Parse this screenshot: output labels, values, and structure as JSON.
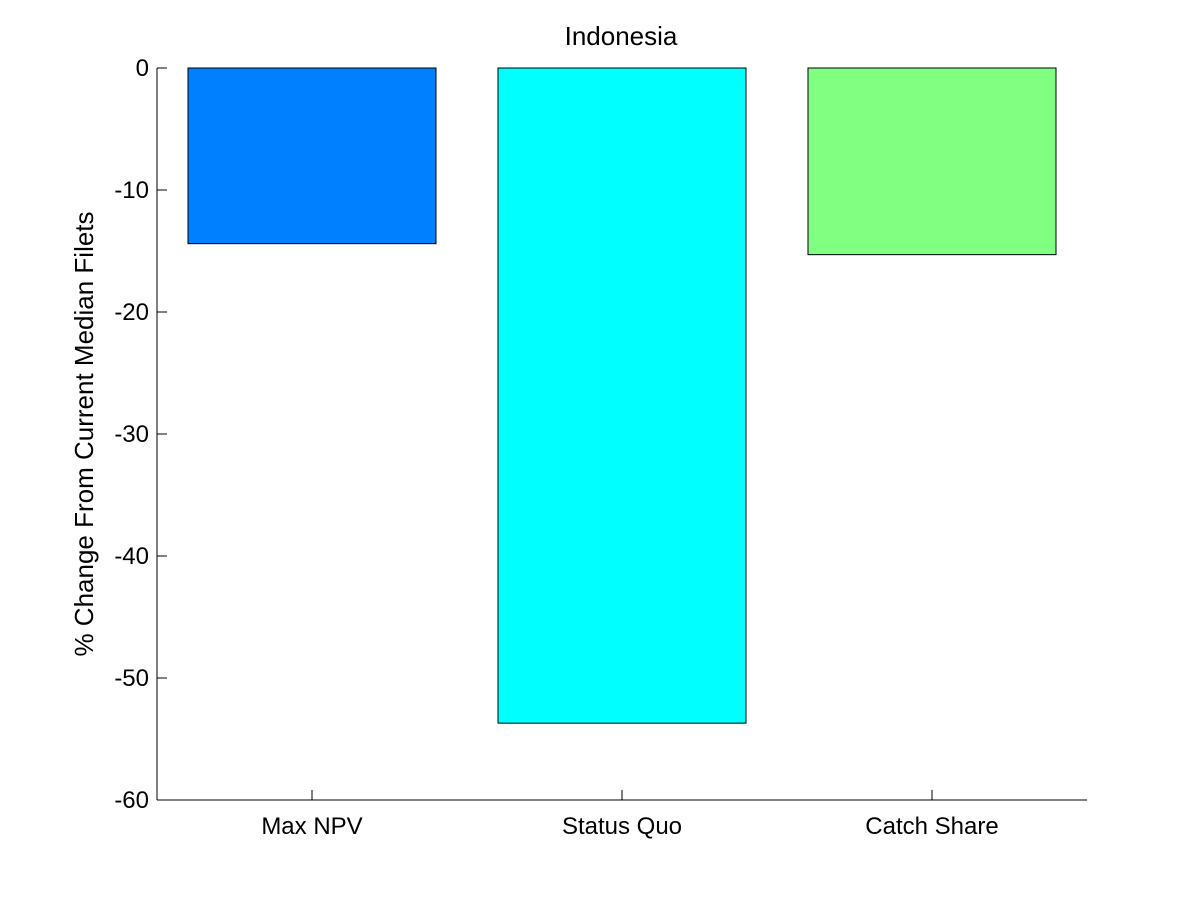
{
  "chart_data": {
    "type": "bar",
    "title": "Indonesia",
    "xlabel": "",
    "ylabel": "% Change From Current Median Filets",
    "categories": [
      "Max NPV",
      "Status Quo",
      "Catch Share"
    ],
    "values": [
      -14.4,
      -53.7,
      -15.3
    ],
    "colors": [
      "#0080ff",
      "#00ffff",
      "#80ff80"
    ],
    "ylim": [
      -60,
      0
    ],
    "yticks": [
      0,
      -10,
      -20,
      -30,
      -40,
      -50,
      -60
    ],
    "grid": false,
    "legend": "none"
  }
}
